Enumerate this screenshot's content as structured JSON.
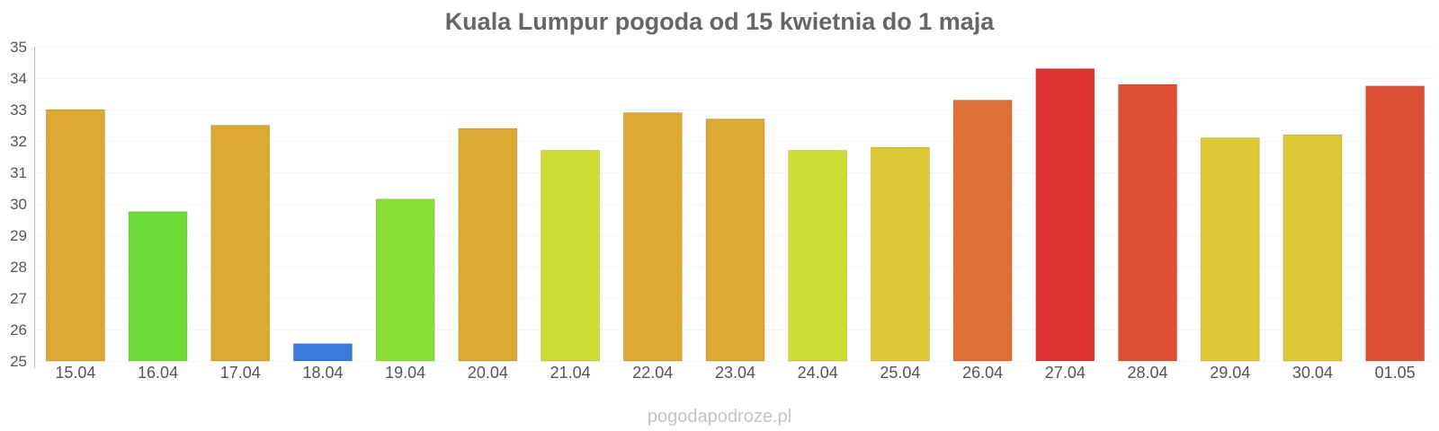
{
  "chart_data": {
    "type": "bar",
    "title": "Kuala Lumpur pogoda od 15 kwietnia do 1 maja",
    "xlabel": "",
    "ylabel": "",
    "ylim": [
      25,
      35
    ],
    "yticks": [
      "25",
      "26",
      "27",
      "28",
      "29",
      "30",
      "31",
      "32",
      "33",
      "34",
      "35"
    ],
    "grid": true,
    "categories": [
      "15.04",
      "16.04",
      "17.04",
      "18.04",
      "19.04",
      "20.04",
      "21.04",
      "22.04",
      "23.04",
      "24.04",
      "25.04",
      "26.04",
      "27.04",
      "28.04",
      "29.04",
      "30.04",
      "01.05"
    ],
    "values": [
      33.0,
      29.75,
      32.5,
      25.55,
      30.15,
      32.4,
      31.7,
      32.9,
      32.7,
      31.7,
      31.8,
      33.3,
      34.3,
      33.8,
      32.1,
      32.2,
      33.75
    ],
    "colors": [
      "#dba833",
      "#6cdc38",
      "#dba833",
      "#3978dc",
      "#8ade38",
      "#dba833",
      "#cddc33",
      "#dba833",
      "#dba833",
      "#cddc33",
      "#dcc933",
      "#dc6f33",
      "#dc3333",
      "#dc5133",
      "#dcc933",
      "#dcc933",
      "#dc5133"
    ]
  },
  "credit": "pogodapodroze.pl"
}
